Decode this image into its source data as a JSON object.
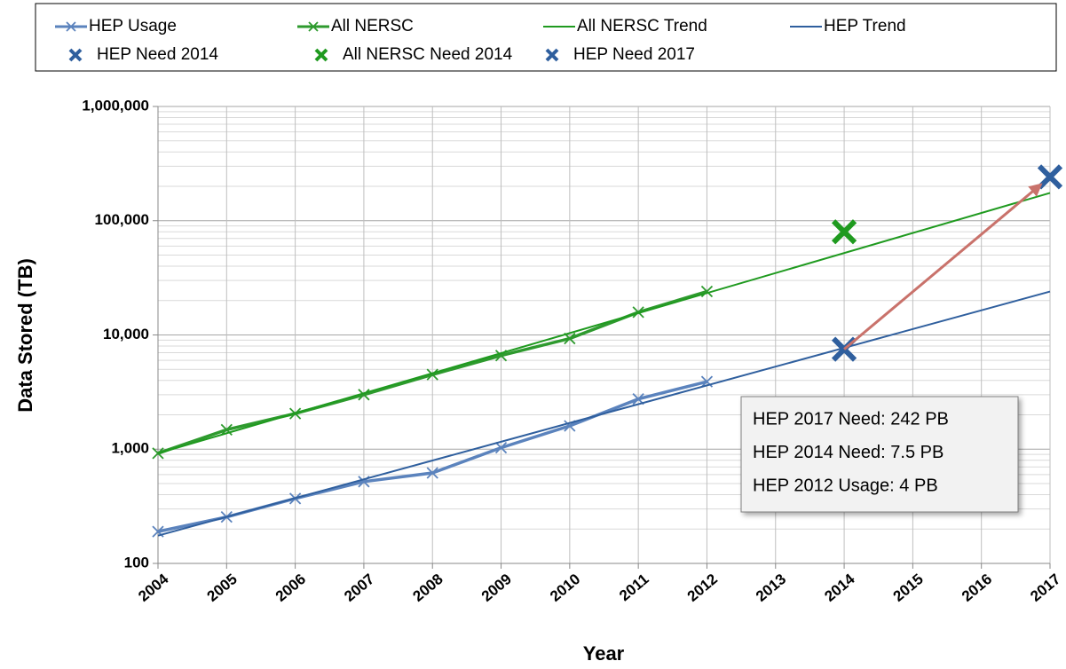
{
  "chart_data": {
    "type": "line",
    "xlabel": "Year",
    "ylabel": "Data Stored (TB)",
    "xlim": [
      2004,
      2017
    ],
    "xticks": [
      2004,
      2005,
      2006,
      2007,
      2008,
      2009,
      2010,
      2011,
      2012,
      2013,
      2014,
      2015,
      2016,
      2017
    ],
    "ylim": [
      100,
      1000000
    ],
    "ylog": true,
    "yticks": [
      {
        "value": 100,
        "label": "100"
      },
      {
        "value": 1000,
        "label": "1,000"
      },
      {
        "value": 10000,
        "label": "10,000"
      },
      {
        "value": 100000,
        "label": "100,000"
      },
      {
        "value": 1000000,
        "label": "1,000,000"
      }
    ],
    "grid": true,
    "minor_grid": true,
    "legend": "top",
    "series": [
      {
        "name": "HEP Usage",
        "color": "#5b83bd",
        "style": "line-marker",
        "x": [
          2004,
          2005,
          2006,
          2007,
          2008,
          2009,
          2010,
          2011,
          2012
        ],
        "values": [
          190,
          255,
          370,
          520,
          620,
          1030,
          1600,
          2750,
          3900
        ]
      },
      {
        "name": "All NERSC",
        "color": "#2e9a2e",
        "style": "line-marker",
        "x": [
          2004,
          2005,
          2006,
          2007,
          2008,
          2009,
          2010,
          2011,
          2012
        ],
        "values": [
          920,
          1480,
          2050,
          3000,
          4500,
          6600,
          9300,
          15800,
          24000
        ]
      },
      {
        "name": "All NERSC Trend",
        "color": "#1f9a1f",
        "style": "line",
        "x": [
          2004,
          2017
        ],
        "values": [
          920,
          175000
        ]
      },
      {
        "name": "HEP Trend",
        "color": "#2f5f9e",
        "style": "line",
        "x": [
          2004,
          2017
        ],
        "values": [
          175,
          24000
        ]
      },
      {
        "name": "HEP Need 2014",
        "color": "#2f5f9e",
        "style": "marker",
        "x": [
          2014
        ],
        "values": [
          7500
        ]
      },
      {
        "name": "All NERSC Need 2014",
        "color": "#1f9a1f",
        "style": "marker",
        "x": [
          2014
        ],
        "values": [
          80000
        ]
      },
      {
        "name": "HEP Need 2017",
        "color": "#2f5f9e",
        "style": "marker",
        "x": [
          2017
        ],
        "values": [
          242000
        ]
      }
    ],
    "annotations": [
      "HEP 2017 Need: 242 PB",
      "HEP 2014 Need: 7.5 PB",
      "HEP 2012 Usage: 4 PB"
    ]
  }
}
